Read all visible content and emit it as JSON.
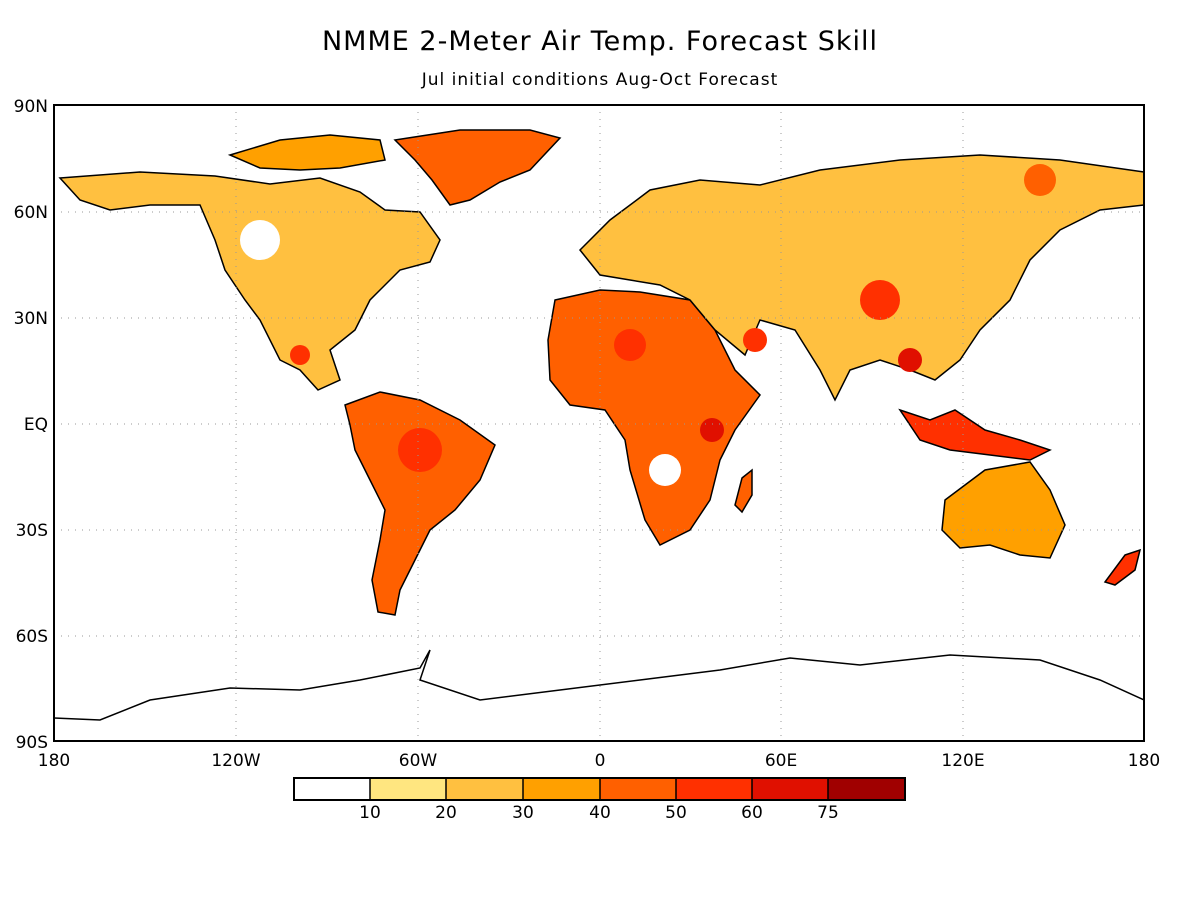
{
  "title": "NMME 2-Meter Air Temp. Forecast Skill",
  "subtitle": "Jul initial conditions  Aug-Oct Forecast",
  "map": {
    "lat_ticks": [
      "90N",
      "60N",
      "30N",
      "EQ",
      "30S",
      "60S",
      "90S"
    ],
    "lon_ticks": [
      "180",
      "120W",
      "60W",
      "0",
      "60E",
      "120E",
      "180"
    ],
    "grid": true
  },
  "colorbar": {
    "labels": [
      "10",
      "20",
      "30",
      "40",
      "50",
      "60",
      "75"
    ],
    "colors": [
      "#ffffff",
      "#ffe680",
      "#ffc040",
      "#ffa000",
      "#ff6000",
      "#ff3000",
      "#e01000",
      "#a00000"
    ]
  },
  "chart_data": {
    "type": "heatmap",
    "title": "NMME 2-Meter Air Temp. Forecast Skill",
    "subtitle": "Jul initial conditions  Aug-Oct Forecast",
    "x_ticks": [
      "180",
      "120W",
      "60W",
      "0",
      "60E",
      "120E",
      "180"
    ],
    "y_ticks": [
      "90N",
      "60N",
      "30N",
      "EQ",
      "30S",
      "60S",
      "90S"
    ],
    "xlim": [
      -180,
      180
    ],
    "ylim": [
      -90,
      90
    ],
    "color_levels": [
      10,
      20,
      30,
      40,
      50,
      60,
      75
    ],
    "grid": true
  }
}
